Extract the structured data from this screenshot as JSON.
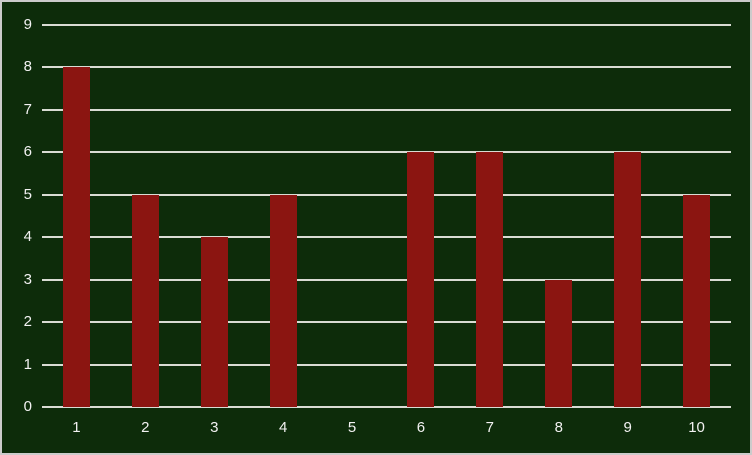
{
  "chart": {
    "background_color": "#0D2C0A",
    "bar_color": "#8B1511",
    "gridline_color": "#D9DCD4",
    "axis_line_color": "#D9DCD4",
    "label_color": "#F2F2F2",
    "frame_border_color": "#CBCBCB"
  },
  "chart_data": {
    "type": "bar",
    "categories": [
      "1",
      "2",
      "3",
      "4",
      "5",
      "6",
      "7",
      "8",
      "9",
      "10"
    ],
    "values": [
      8,
      5,
      4,
      5,
      0,
      6,
      6,
      3,
      6,
      5
    ],
    "series": [
      {
        "name": "",
        "values": [
          8,
          5,
          4,
          5,
          0,
          6,
          6,
          3,
          6,
          5
        ]
      }
    ],
    "title": "",
    "xlabel": "",
    "ylabel": "",
    "ylim": [
      0,
      9
    ],
    "yticks": [
      0,
      1,
      2,
      3,
      4,
      5,
      6,
      7,
      8,
      9
    ],
    "grid": true,
    "gridlines": "horizontal",
    "legend": false,
    "legend_position": "none"
  }
}
